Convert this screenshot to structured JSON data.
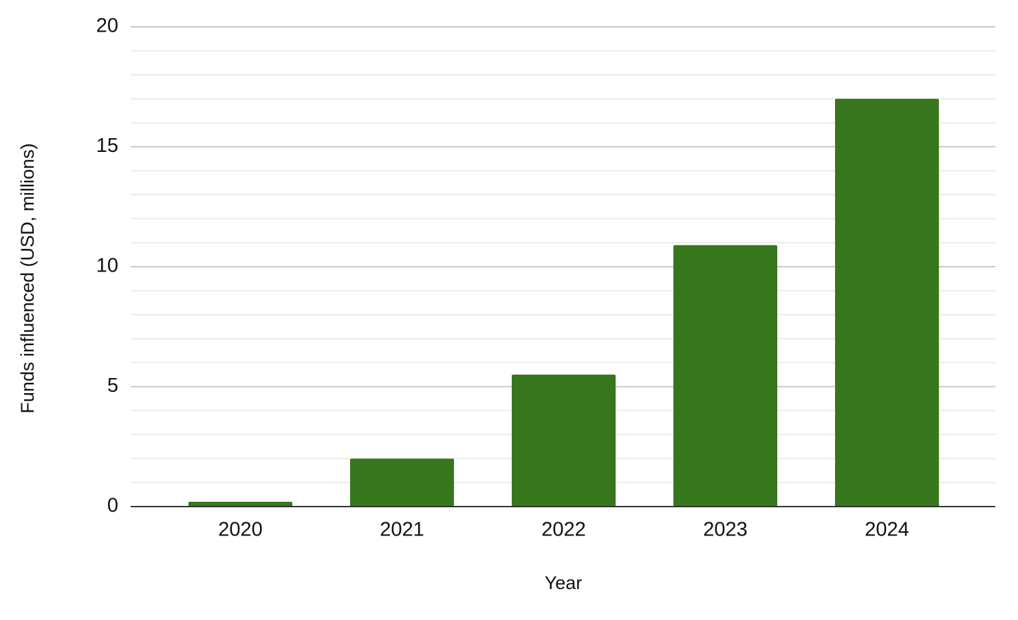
{
  "chart_data": {
    "type": "bar",
    "x_label": "Year",
    "y_label": "Funds influenced (USD, millions)",
    "categories": [
      "2020",
      "2021",
      "2022",
      "2023",
      "2024"
    ],
    "values": [
      0.2,
      2,
      5.5,
      10.9,
      17
    ],
    "color": "#38761d",
    "ylim": [
      0,
      20
    ],
    "yticks": [
      0,
      5,
      10,
      15,
      20
    ],
    "minor_yticks": [
      1,
      2,
      3,
      4,
      6,
      7,
      8,
      9,
      11,
      12,
      13,
      14,
      16,
      17,
      18,
      19
    ],
    "grid": true
  }
}
